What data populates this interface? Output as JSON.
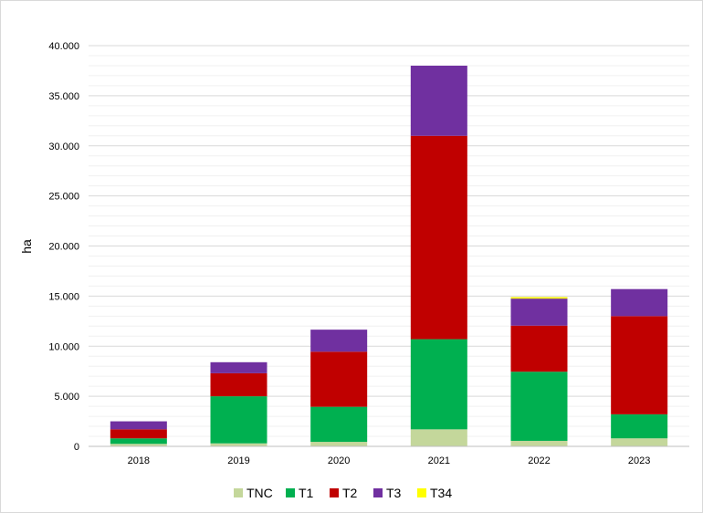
{
  "chart_data": {
    "type": "bar",
    "stacked": true,
    "categories": [
      "2018",
      "2019",
      "2020",
      "2021",
      "2022",
      "2023"
    ],
    "series": [
      {
        "name": "TNC",
        "color": "#c4d79b",
        "values": [
          250,
          300,
          450,
          1700,
          550,
          800
        ]
      },
      {
        "name": "T1",
        "color": "#00b050",
        "values": [
          550,
          4700,
          3500,
          9000,
          6900,
          2400
        ]
      },
      {
        "name": "T2",
        "color": "#c00000",
        "values": [
          900,
          2300,
          5500,
          20300,
          4600,
          9800
        ]
      },
      {
        "name": "T3",
        "color": "#7030a0",
        "values": [
          800,
          1100,
          2200,
          7000,
          2700,
          2700
        ]
      },
      {
        "name": "T34",
        "color": "#ffff00",
        "values": [
          0,
          0,
          0,
          0,
          150,
          0
        ]
      }
    ],
    "ylabel": "ha",
    "xlabel": "",
    "ylim": [
      0,
      40000
    ],
    "yticks": [
      0,
      5000,
      10000,
      15000,
      20000,
      25000,
      30000,
      35000,
      40000
    ],
    "ytick_labels": [
      "0",
      "5.000",
      "10.000",
      "15.000",
      "20.000",
      "25.000",
      "30.000",
      "35.000",
      "40.000"
    ],
    "grid": true,
    "legend_position": "bottom"
  }
}
